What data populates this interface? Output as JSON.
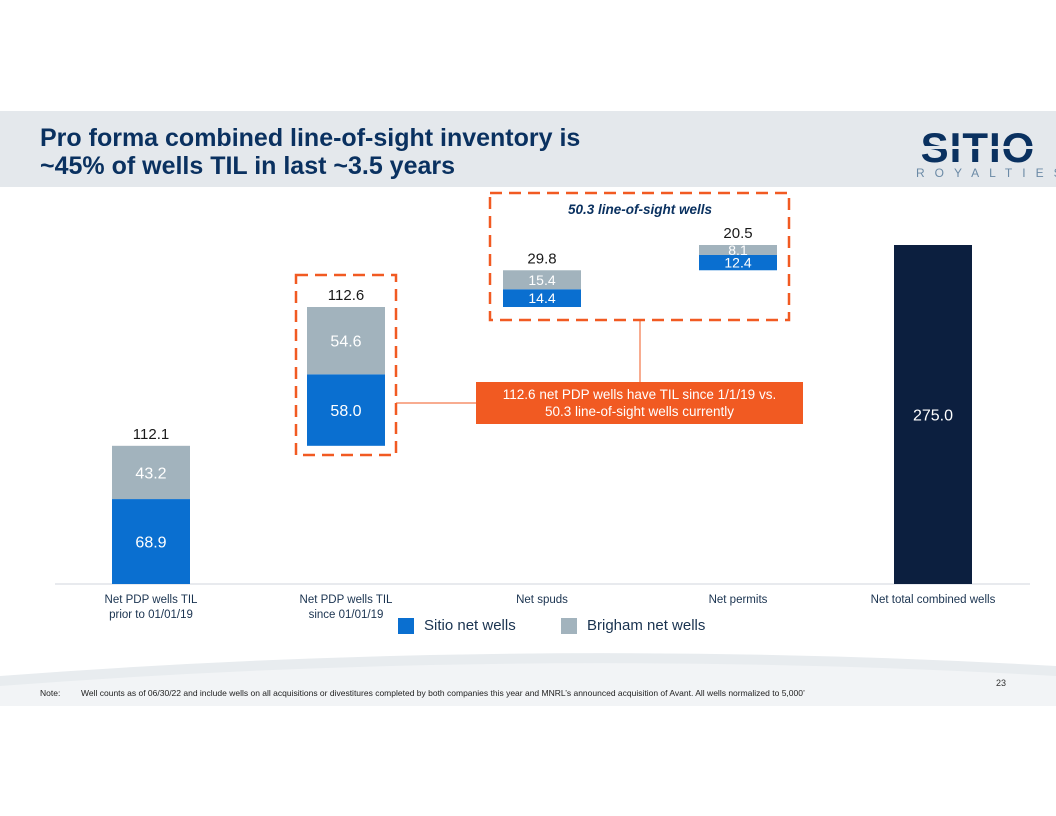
{
  "title": {
    "line1": "Pro forma combined line-of-sight inventory is",
    "line2": "~45% of wells TIL in last ~3.5 years"
  },
  "logo": {
    "word": "SITIO",
    "sub": "ROYALTIES"
  },
  "colors": {
    "sitio": "#0a6fd0",
    "brigham": "#a2b3bd",
    "total": "#0c1f3f",
    "accent": "#f15a22",
    "title": "#0a3160"
  },
  "chart_data": {
    "type": "bar",
    "subtype": "stacked-waterfall",
    "title": "",
    "xlabel": "",
    "ylabel": "",
    "categories": [
      {
        "line1": "Net PDP wells TIL",
        "line2": "prior to 01/01/19"
      },
      {
        "line1": "Net PDP wells TIL",
        "line2": "since 01/01/19"
      },
      {
        "line1": "Net spuds",
        "line2": ""
      },
      {
        "line1": "Net permits",
        "line2": ""
      },
      {
        "line1": "Net total combined wells",
        "line2": ""
      }
    ],
    "series": [
      {
        "name": "Sitio net wells",
        "values": [
          68.9,
          58.0,
          14.4,
          12.4,
          null
        ]
      },
      {
        "name": "Brigham net wells",
        "values": [
          43.2,
          54.6,
          15.4,
          8.1,
          null
        ]
      }
    ],
    "bases": [
      0,
      112.1,
      224.7,
      254.5,
      0
    ],
    "totals": [
      112.1,
      112.6,
      29.8,
      20.5,
      275.0
    ],
    "total_labels": [
      "112.1",
      "112.6",
      "29.8",
      "20.5",
      "275.0"
    ],
    "segment_labels": {
      "sitio": [
        "68.9",
        "58.0",
        "14.4",
        "12.4"
      ],
      "brigham": [
        "43.2",
        "54.6",
        "15.4",
        "8.1"
      ]
    },
    "ylim": [
      0,
      275
    ],
    "grid": false,
    "legend": "bottom-center",
    "annotations": {
      "line_of_sight_box": "50.3 line-of-sight wells",
      "callout_line1": "112.6 net PDP wells have TIL since 1/1/19 vs.",
      "callout_line2": "50.3 line-of-sight wells currently"
    }
  },
  "footer": {
    "page_number": "23",
    "note_label": "Note:",
    "note_text": "Well counts as of 06/30/22 and include wells on all acquisitions or divestitures completed by both companies this year and MNRL’s announced acquisition of Avant. All wells normalized to 5,000’"
  }
}
